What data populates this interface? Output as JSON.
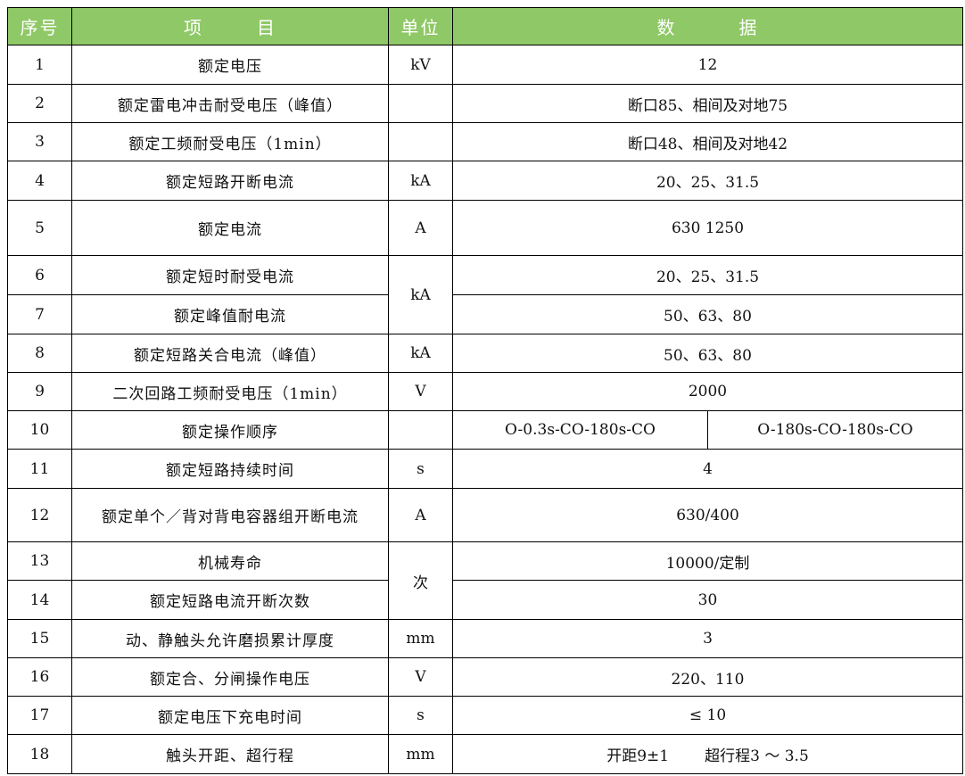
{
  "header": {
    "no": "序号",
    "item_a": "项",
    "item_b": "目",
    "unit": "单位",
    "data_a": "数",
    "data_b": "据"
  },
  "rows": [
    {
      "no": "1",
      "item": "额定电压",
      "unit": "kV",
      "data": "12"
    },
    {
      "no": "2",
      "item": "额定雷电冲击耐受电压（峰值）",
      "unit": "",
      "data": "断口85、相间及对地75"
    },
    {
      "no": "3",
      "item": "额定工频耐受电压（1min）",
      "unit": "",
      "data": "断口48、相间及对地42"
    },
    {
      "no": "4",
      "item": "额定短路开断电流",
      "unit": "kA",
      "data": "20、25、31.5"
    },
    {
      "no": "5",
      "item": "额定电流",
      "unit": "A",
      "data": "630 1250"
    },
    {
      "no": "6",
      "item": "额定短时耐受电流",
      "unit": "kA",
      "data": "20、25、31.5"
    },
    {
      "no": "7",
      "item": "额定峰值耐电流",
      "unit": null,
      "data": "50、63、80"
    },
    {
      "no": "8",
      "item": "额定短路关合电流（峰值）",
      "unit": "kA",
      "data": "50、63、80"
    },
    {
      "no": "9",
      "item": "二次回路工频耐受电压（1min）",
      "unit": "V",
      "data": "2000"
    },
    {
      "no": "10",
      "item": "额定操作顺序",
      "unit": "",
      "data": "O-0.3s-CO-180s-CO",
      "data2": "O-180s-CO-180s-CO"
    },
    {
      "no": "11",
      "item": "额定短路持续时间",
      "unit": "s",
      "data": "4"
    },
    {
      "no": "12",
      "item": "额定单个／背对背电容器组开断电流",
      "unit": "A",
      "data": "630/400"
    },
    {
      "no": "13",
      "item": "机械寿命",
      "unit": "次",
      "data": "10000/定制"
    },
    {
      "no": "14",
      "item": "额定短路电流开断次数",
      "unit": null,
      "data": "30"
    },
    {
      "no": "15",
      "item": "动、静触头允许磨损累计厚度",
      "unit": "mm",
      "data": "3"
    },
    {
      "no": "16",
      "item": "额定合、分闸操作电压",
      "unit": "V",
      "data": "220、110"
    },
    {
      "no": "17",
      "item": "额定电压下充电时间",
      "unit": "s",
      "data": "≤ 10"
    },
    {
      "no": "18",
      "item": "触头开距、超行程",
      "unit": "mm",
      "data": "开距9±1",
      "data_extra": "超行程3 ～ 3.5"
    }
  ],
  "colors": {
    "header_bg": "#8fc866",
    "header_text": "#ffffff",
    "border": "#000000"
  }
}
